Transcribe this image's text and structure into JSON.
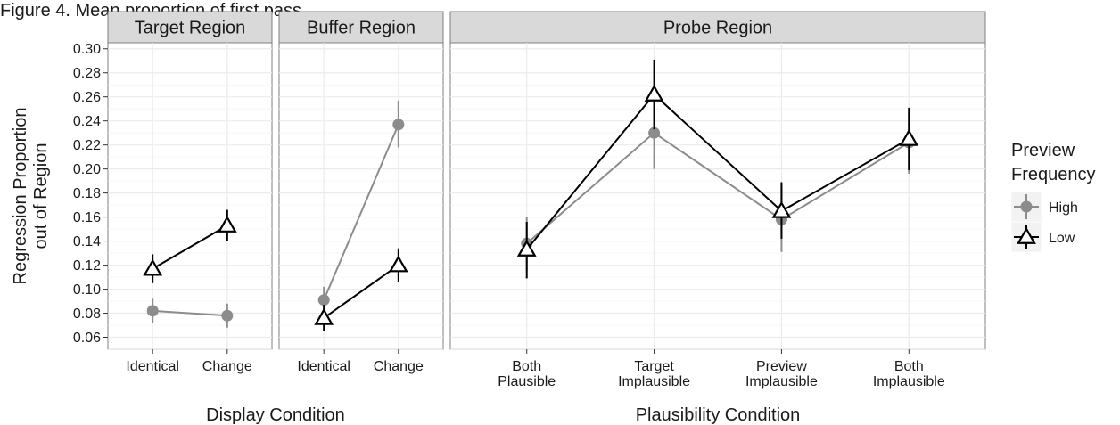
{
  "caption": "Figure 4. Mean proportion of first pass",
  "chart_data": {
    "type": "line",
    "ylabel": [
      "Regression Proportion",
      "out of Region"
    ],
    "ylim": [
      0.05,
      0.305
    ],
    "yticks": [
      0.06,
      0.08,
      0.1,
      0.12,
      0.14,
      0.16,
      0.18,
      0.2,
      0.22,
      0.24,
      0.26,
      0.28,
      0.3
    ],
    "ytick_labels": [
      "0.06",
      "0.08",
      "0.10",
      "0.12",
      "0.14",
      "0.16",
      "0.18",
      "0.20",
      "0.22",
      "0.24",
      "0.26",
      "0.28",
      "0.30"
    ],
    "grid": true,
    "legend": {
      "title": [
        "Preview",
        "Frequency"
      ],
      "placement": "right",
      "entries": [
        {
          "label": "High",
          "color": "#8c8c8c",
          "shape": "circle"
        },
        {
          "label": "Low",
          "color": "#000000",
          "shape": "triangle"
        }
      ]
    },
    "xlabel_groups": [
      {
        "label": "Display Condition",
        "panels": [
          0,
          1
        ]
      },
      {
        "label": "Plausibility Condition",
        "panels": [
          2
        ]
      }
    ],
    "panels": [
      {
        "strip": "Target Region",
        "categories": [
          [
            "Identical"
          ],
          [
            "Change"
          ]
        ],
        "series": [
          {
            "name": "High",
            "values": [
              0.082,
              0.078
            ],
            "lower": [
              0.072,
              0.068
            ],
            "upper": [
              0.092,
              0.088
            ]
          },
          {
            "name": "Low",
            "values": [
              0.117,
              0.153
            ],
            "lower": [
              0.105,
              0.14
            ],
            "upper": [
              0.129,
              0.166
            ]
          }
        ]
      },
      {
        "strip": "Buffer Region",
        "categories": [
          [
            "Identical"
          ],
          [
            "Change"
          ]
        ],
        "series": [
          {
            "name": "High",
            "values": [
              0.091,
              0.237
            ],
            "lower": [
              0.08,
              0.218
            ],
            "upper": [
              0.102,
              0.257
            ]
          },
          {
            "name": "Low",
            "values": [
              0.076,
              0.12
            ],
            "lower": [
              0.065,
              0.106
            ],
            "upper": [
              0.087,
              0.134
            ]
          }
        ]
      },
      {
        "strip": "Probe Region",
        "categories": [
          [
            "Both",
            "Plausible"
          ],
          [
            "Target",
            "Implausible"
          ],
          [
            "Preview",
            "Implausible"
          ],
          [
            "Both",
            "Implausible"
          ]
        ],
        "series": [
          {
            "name": "High",
            "values": [
              0.138,
              0.23,
              0.158,
              0.222
            ],
            "lower": [
              0.116,
              0.2,
              0.131,
              0.196
            ],
            "upper": [
              0.16,
              0.26,
              0.185,
              0.248
            ]
          },
          {
            "name": "Low",
            "values": [
              0.133,
              0.262,
              0.165,
              0.225
            ],
            "lower": [
              0.109,
              0.233,
              0.142,
              0.199
            ],
            "upper": [
              0.156,
              0.291,
              0.189,
              0.251
            ]
          }
        ]
      }
    ]
  }
}
